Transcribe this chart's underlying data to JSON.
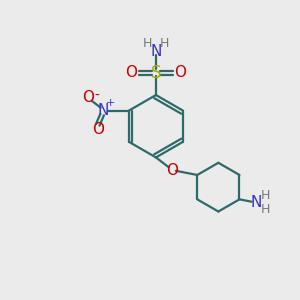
{
  "bg_color": "#ebebeb",
  "bond_color": "#2d6b6b",
  "N_color": "#3333cc",
  "O_color": "#cc0000",
  "S_color": "#aaaa00",
  "H_color": "#777777",
  "fig_size": [
    3.0,
    3.0
  ],
  "dpi": 100,
  "xlim": [
    0,
    10
  ],
  "ylim": [
    0,
    10
  ]
}
